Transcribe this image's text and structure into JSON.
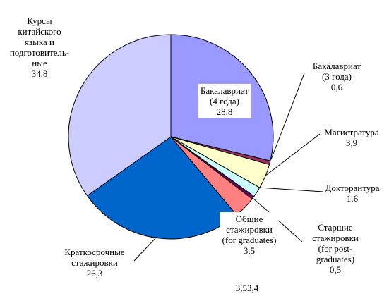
{
  "chart_data": {
    "type": "pie",
    "title": "",
    "slices": [
      {
        "label": "Бакалавриат (4 года)",
        "lines": [
          "Бакалавриат",
          "(4 года)",
          "28,8"
        ],
        "value": 28.8,
        "color": "#9999ff"
      },
      {
        "label": "Бакалавриат (3 года)",
        "lines": [
          "Бакалавриат",
          "(3 года)",
          "0,6"
        ],
        "value": 0.6,
        "color": "#993366"
      },
      {
        "label": "Магистратура",
        "lines": [
          "Магистратура",
          "3,9"
        ],
        "value": 3.9,
        "color": "#ffffcc"
      },
      {
        "label": "Докторантура",
        "lines": [
          "Докторантура",
          "1,6"
        ],
        "value": 1.6,
        "color": "#ccffff"
      },
      {
        "label": "Старшие стажировки (for post-graduates)",
        "lines": [
          "Старшие",
          "стажировки",
          "(for post-",
          "graduates)",
          "0,5"
        ],
        "value": 0.5,
        "color": "#660066"
      },
      {
        "label": "Общие стажировки (for graduates)",
        "lines": [
          "Общие",
          "стажировки",
          "(for graduates)",
          "3,5"
        ],
        "value": 3.5,
        "color": "#ff8080"
      },
      {
        "label": "Краткосрочные стажировки",
        "lines": [
          "Краткосрочные",
          "стажировки",
          "26,3"
        ],
        "value": 26.3,
        "color": "#0066cc"
      },
      {
        "label": "Курсы китайского языка и подготовительные",
        "lines": [
          "Курсы",
          "китайского",
          "языка и",
          "подготовитель-",
          "ные",
          "34,8"
        ],
        "value": 34.8,
        "color": "#ccccff"
      }
    ],
    "stray_label": "3,53,4",
    "start_angle_deg": 0,
    "direction": "clockwise",
    "legend": "none"
  }
}
